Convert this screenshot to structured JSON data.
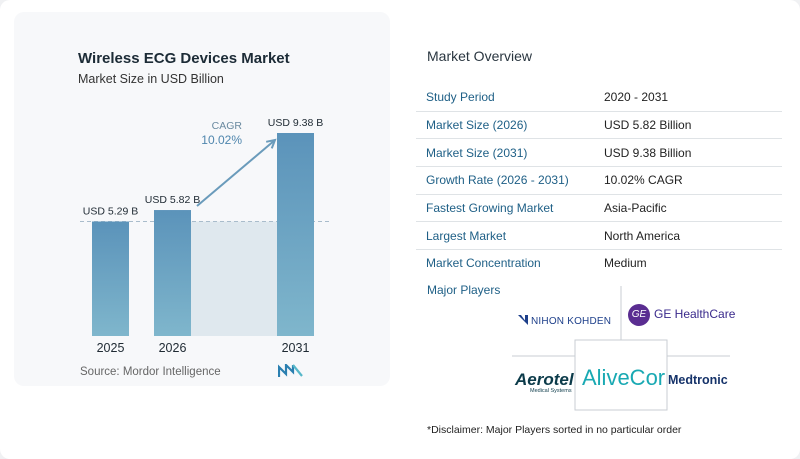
{
  "chart_data": {
    "type": "bar",
    "title": "Wireless ECG Devices Market",
    "subtitle": "Market Size in USD Billion",
    "categories": [
      "2025",
      "2026",
      "2031"
    ],
    "values": [
      5.29,
      5.82,
      9.38
    ],
    "data_labels": [
      "USD 5.29 B",
      "USD 5.82 B",
      "USD 9.38 B"
    ],
    "annotation": {
      "label": "CAGR",
      "value": "10.02%"
    },
    "colors": {
      "bar_top": "#5b93ba",
      "bar_bottom": "#7fb6cc",
      "band": "#dfe8ee",
      "arrow": "#6a9bbb"
    },
    "ylim": [
      0,
      10
    ]
  },
  "source": "Source:  Mordor Intelligence",
  "overview": {
    "title": "Market Overview",
    "rows": [
      {
        "key": "Study Period",
        "value": "2020 - 2031"
      },
      {
        "key": "Market Size (2026)",
        "value": "USD 5.82 Billion"
      },
      {
        "key": "Market Size (2031)",
        "value": "USD 9.38 Billion"
      },
      {
        "key": "Growth Rate (2026 - 2031)",
        "value": "10.02% CAGR"
      },
      {
        "key": "Fastest Growing Market",
        "value": "Asia-Pacific"
      },
      {
        "key": "Largest Market",
        "value": "North America"
      },
      {
        "key": "Market Concentration",
        "value": "Medium"
      }
    ]
  },
  "players": {
    "title": "Major Players",
    "nihon": "NIHON KOHDEN",
    "ge": "GE HealthCare",
    "ge_mark": "GE",
    "alivecor": "AliveCor",
    "aerotel": "Aerotel",
    "aerotel_sub": "Medical Systems",
    "medtronic": "Medtronic"
  },
  "disclaimer": "*Disclaimer: Major Players sorted in no particular order"
}
